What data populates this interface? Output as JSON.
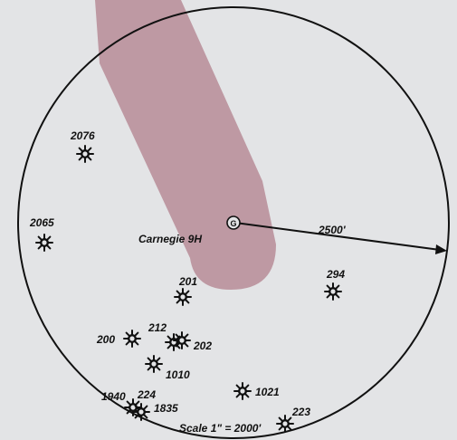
{
  "map": {
    "center_well": {
      "name": "Carnegie 9H"
    },
    "radius_label": "2500'",
    "scale_label": "Scale 1\" = 2000'",
    "colors": {
      "background": "#e3e4e6",
      "lateral": "#b78c96",
      "ink": "#111111"
    },
    "wells": [
      {
        "id": "2076"
      },
      {
        "id": "2065"
      },
      {
        "id": "201"
      },
      {
        "id": "294"
      },
      {
        "id": "212"
      },
      {
        "id": "202"
      },
      {
        "id": "200"
      },
      {
        "id": "1010"
      },
      {
        "id": "1021"
      },
      {
        "id": "1940"
      },
      {
        "id": "224"
      },
      {
        "id": "1835"
      },
      {
        "id": "223"
      }
    ]
  }
}
